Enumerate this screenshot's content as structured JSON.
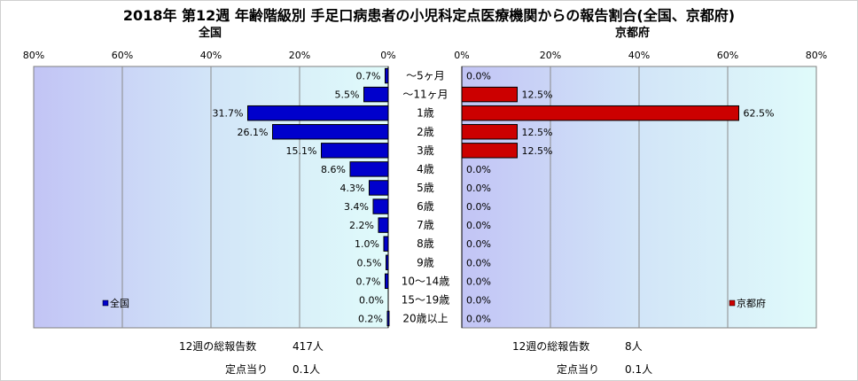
{
  "chart_data": [
    {
      "type": "bar",
      "orientation": "horizontal",
      "direction": "right-to-left",
      "title": "2018年 第12週 年齢階級別 手足口病患者の小児科定点医療機関からの報告割合(全国、京都府)",
      "subtitle": "全国",
      "categories": [
        "～5ヶ月",
        "～11ヶ月",
        "1歳",
        "2歳",
        "3歳",
        "4歳",
        "5歳",
        "6歳",
        "7歳",
        "8歳",
        "9歳",
        "10～14歳",
        "15～19歳",
        "20歳以上"
      ],
      "series": [
        {
          "name": "全国",
          "color": "#0000cc",
          "values": [
            0.7,
            5.5,
            31.7,
            26.1,
            15.1,
            8.6,
            4.3,
            3.4,
            2.2,
            1.0,
            0.5,
            0.7,
            0.0,
            0.2
          ],
          "labels": [
            "0.7%",
            "5.5%",
            "31.7%",
            "26.1%",
            "15.1%",
            "8.6%",
            "4.3%",
            "3.4%",
            "2.2%",
            "1.0%",
            "0.5%",
            "0.7%",
            "0.0%",
            "0.2%"
          ]
        }
      ],
      "xlim": [
        0,
        80
      ],
      "ticks": [
        "80%",
        "60%",
        "40%",
        "20%",
        "0%"
      ],
      "grid": true,
      "legend": "bottom-left"
    },
    {
      "type": "bar",
      "orientation": "horizontal",
      "direction": "left-to-right",
      "subtitle": "京都府",
      "categories": [
        "～5ヶ月",
        "～11ヶ月",
        "1歳",
        "2歳",
        "3歳",
        "4歳",
        "5歳",
        "6歳",
        "7歳",
        "8歳",
        "9歳",
        "10～14歳",
        "15～19歳",
        "20歳以上"
      ],
      "series": [
        {
          "name": "京都府",
          "color": "#cc0000",
          "values": [
            0.0,
            12.5,
            62.5,
            12.5,
            12.5,
            0.0,
            0.0,
            0.0,
            0.0,
            0.0,
            0.0,
            0.0,
            0.0,
            0.0
          ],
          "labels": [
            "0.0%",
            "12.5%",
            "62.5%",
            "12.5%",
            "12.5%",
            "0.0%",
            "0.0%",
            "0.0%",
            "0.0%",
            "0.0%",
            "0.0%",
            "0.0%",
            "0.0%",
            "0.0%"
          ]
        }
      ],
      "xlim": [
        0,
        80
      ],
      "ticks": [
        "0%",
        "20%",
        "40%",
        "60%",
        "80%"
      ],
      "grid": true,
      "legend": "bottom-right"
    }
  ],
  "stats": {
    "national": {
      "total_label": "12週の総報告数",
      "total_value": "417人",
      "per_label": "定点当り",
      "per_value": "0.1人"
    },
    "kyoto": {
      "total_label": "12週の総報告数",
      "total_value": "8人",
      "per_label": "定点当り",
      "per_value": "0.1人"
    }
  }
}
